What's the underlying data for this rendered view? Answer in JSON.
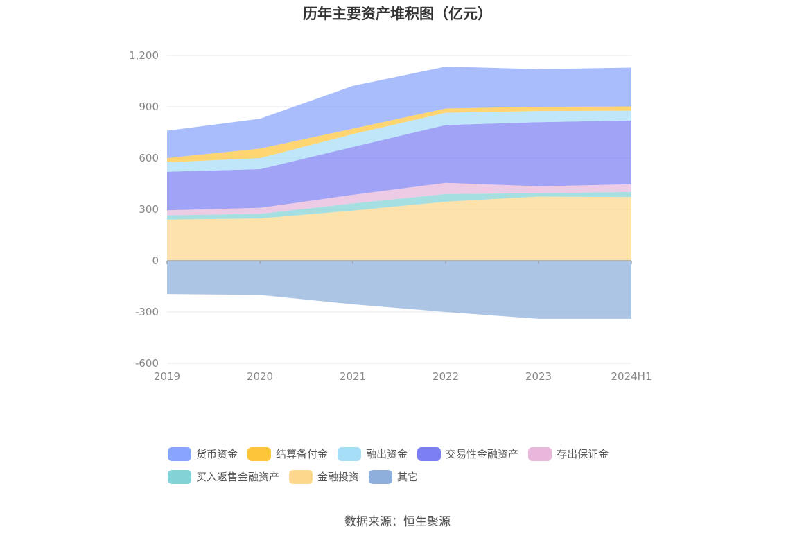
{
  "title": "历年主要资产堆积图（亿元）",
  "source": "数据来源：恒生聚源",
  "chart_data": {
    "type": "area",
    "stacked": true,
    "categories": [
      "2019",
      "2020",
      "2021",
      "2022",
      "2023",
      "2024H1"
    ],
    "ylim": [
      -600,
      1200
    ],
    "yticks": [
      1200,
      900,
      600,
      300,
      0,
      -300,
      -600
    ],
    "ytick_labels": [
      "1,200",
      "900",
      "600",
      "300",
      "0",
      "-300",
      "-600"
    ],
    "grid": true,
    "legend_position": "bottom",
    "series": [
      {
        "name": "金融投资",
        "color": "#FDD78C",
        "values": [
          240,
          247,
          293,
          345,
          375,
          372
        ]
      },
      {
        "name": "买入返售金融资产",
        "color": "#83D3D6",
        "values": [
          25,
          27,
          42,
          45,
          20,
          30
        ]
      },
      {
        "name": "存出保证金",
        "color": "#E8B7DB",
        "values": [
          30,
          35,
          50,
          65,
          40,
          45
        ]
      },
      {
        "name": "交易性金融资产",
        "color": "#7B7FF2",
        "values": [
          225,
          226,
          280,
          338,
          375,
          373
        ]
      },
      {
        "name": "融出资金",
        "color": "#A6DEF7",
        "values": [
          55,
          65,
          75,
          72,
          65,
          57
        ]
      },
      {
        "name": "结算备付金",
        "color": "#FDC53A",
        "values": [
          25,
          55,
          32,
          25,
          25,
          25
        ]
      },
      {
        "name": "货币资金",
        "color": "#88A4FC",
        "values": [
          160,
          175,
          250,
          245,
          220,
          227
        ]
      },
      {
        "name": "其它",
        "color": "#8EAEDB",
        "values": [
          -195,
          -200,
          -255,
          -300,
          -340,
          -340
        ]
      }
    ]
  },
  "legend": {
    "rows": [
      [
        0,
        1,
        2,
        3,
        4
      ],
      [
        5,
        6,
        7
      ]
    ],
    "order": [
      "货币资金",
      "结算备付金",
      "融出资金",
      "交易性金融资产",
      "存出保证金",
      "买入返售金融资产",
      "金融投资",
      "其它"
    ]
  }
}
